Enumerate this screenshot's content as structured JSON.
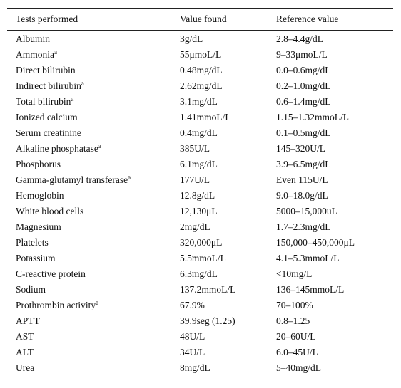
{
  "table": {
    "header": [
      "Tests performed",
      "Value found",
      "Reference value"
    ],
    "rows": [
      {
        "test": "Albumin",
        "value": "3g/dL",
        "reference": "2.8–4.4g/dL"
      },
      {
        "test": "Ammonia",
        "note": "a",
        "value": "55μmoL/L",
        "reference": "9–33μmoL/L"
      },
      {
        "test": "Direct bilirubin",
        "value": "0.48mg/dL",
        "reference": "0.0–0.6mg/dL"
      },
      {
        "test": "Indirect bilirubin",
        "note": "a",
        "value": "2.62mg/dL",
        "reference": "0.2–1.0mg/dL"
      },
      {
        "test": "Total bilirubin",
        "note": "a",
        "value": "3.1mg/dL",
        "reference": "0.6–1.4mg/dL"
      },
      {
        "test": "Ionized calcium",
        "value": "1.41mmoL/L",
        "reference": "1.15–1.32mmoL/L"
      },
      {
        "test": "Serum creatinine",
        "value": "0.4mg/dL",
        "reference": "0.1–0.5mg/dL"
      },
      {
        "test": "Alkaline phosphatase",
        "note": "a",
        "value": "385U/L",
        "reference": "145–320U/L"
      },
      {
        "test": "Phosphorus",
        "value": "6.1mg/dL",
        "reference": "3.9–6.5mg/dL"
      },
      {
        "test": "Gamma-glutamyl transferase",
        "note": "a",
        "value": "177U/L",
        "reference": "Even 115U/L"
      },
      {
        "test": "Hemoglobin",
        "value": "12.8g/dL",
        "reference": "9.0–18.0g/dL"
      },
      {
        "test": "White blood cells",
        "value": "12,130μL",
        "reference": "5000–15,000uL"
      },
      {
        "test": "Magnesium",
        "value": "2mg/dL",
        "reference": "1.7–2.3mg/dL"
      },
      {
        "test": "Platelets",
        "value": "320,000μL",
        "reference": "150,000–450,000μL"
      },
      {
        "test": "Potassium",
        "value": "5.5mmoL/L",
        "reference": "4.1–5.3mmoL/L"
      },
      {
        "test": "C-reactive protein",
        "value": "6.3mg/dL",
        "reference": "<10mg/L"
      },
      {
        "test": "Sodium",
        "value": "137.2mmoL/L",
        "reference": "136–145mmoL/L"
      },
      {
        "test": "Prothrombin activity",
        "note": "a",
        "value": "67.9%",
        "reference": "70–100%"
      },
      {
        "test": "APTT",
        "value": "39.9seg (1.25)",
        "reference": "0.8–1.25"
      },
      {
        "test": "AST",
        "value": "48U/L",
        "reference": "20–60U/L"
      },
      {
        "test": "ALT",
        "value": "34U/L",
        "reference": "6.0–45U/L"
      },
      {
        "test": "Urea",
        "value": "8mg/dL",
        "reference": "5–40mg/dL"
      }
    ]
  }
}
